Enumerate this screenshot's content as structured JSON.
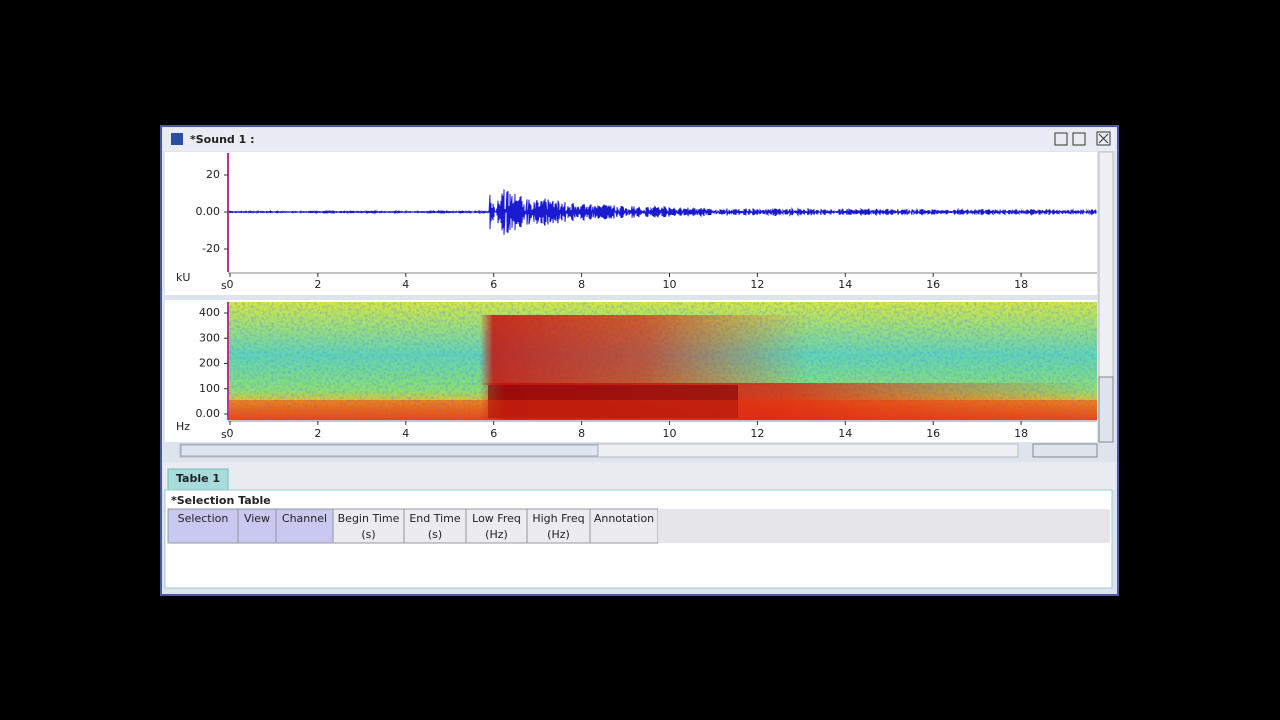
{
  "window": {
    "title": "*Sound 1 :"
  },
  "waveform": {
    "unit": "kU",
    "time_unit": "s",
    "yticks": [
      20,
      {
        "value": 0,
        "label": "0.00"
      },
      -20
    ],
    "xticks": [
      0,
      2,
      4,
      6,
      8,
      10,
      12,
      14,
      16,
      18
    ]
  },
  "spectrogram": {
    "unit": "Hz",
    "time_unit": "s",
    "yticks": [
      400,
      300,
      200,
      100,
      {
        "value": 0,
        "label": "0.00"
      }
    ],
    "xticks": [
      0,
      2,
      4,
      6,
      8,
      10,
      12,
      14,
      16,
      18
    ]
  },
  "tabs": [
    "Table 1"
  ],
  "table": {
    "title": "*Selection Table",
    "columns": [
      {
        "label": "Selection"
      },
      {
        "label": "View"
      },
      {
        "label": "Channel"
      },
      {
        "label": "Begin Time",
        "unit": "(s)"
      },
      {
        "label": "End Time",
        "unit": "(s)"
      },
      {
        "label": "Low Freq",
        "unit": "(Hz)"
      },
      {
        "label": "High Freq",
        "unit": "(Hz)"
      },
      {
        "label": "Annotation"
      }
    ]
  }
}
